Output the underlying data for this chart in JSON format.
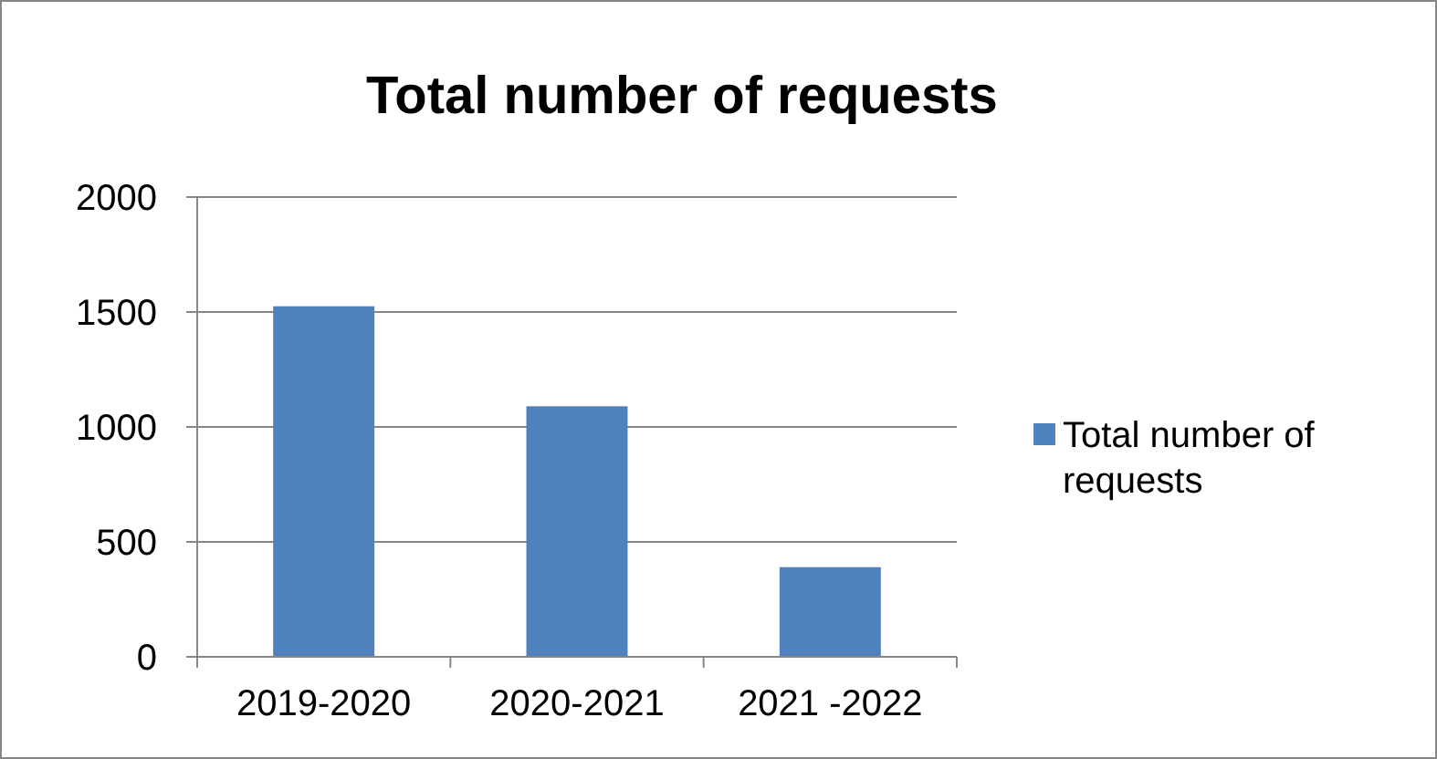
{
  "chart_data": {
    "type": "bar",
    "title": "Total number of requests",
    "categories": [
      "2019-2020",
      "2020-2021",
      "2021 -2022"
    ],
    "series": [
      {
        "name": "Total number of requests",
        "color": "#4f81bd",
        "values": [
          1525,
          1090,
          390
        ]
      }
    ],
    "ylim": [
      0,
      2000
    ],
    "yticks": [
      0,
      500,
      1000,
      1500,
      2000
    ],
    "grid": "y",
    "legend": "right"
  }
}
